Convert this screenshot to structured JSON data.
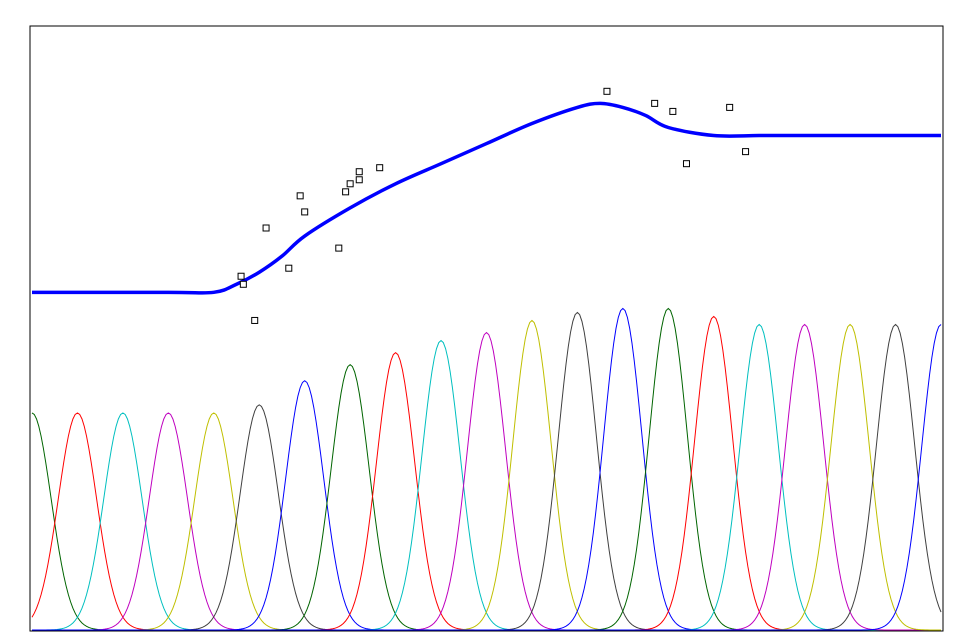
{
  "chart_data": {
    "type": "line",
    "title": "",
    "xlabel": "",
    "ylabel": "",
    "xlim": [
      0,
      20
    ],
    "ylim": [
      0,
      1.5
    ],
    "grid": false,
    "legend": "none",
    "basis_height": [
      0.54,
      0.54,
      0.54,
      0.54,
      0.54,
      0.56,
      0.62,
      0.66,
      0.69,
      0.72,
      0.74,
      0.77,
      0.79,
      0.8,
      0.8,
      0.78,
      0.76,
      0.76,
      0.76,
      0.76,
      0.76
    ],
    "basis_colors": [
      "#006400",
      "#ff0000",
      "#00bfbf",
      "#bf00bf",
      "#bfbf00",
      "#404040",
      "#0000ff"
    ],
    "fit_curve": {
      "color": "#0000ff",
      "x": [
        0,
        3,
        4,
        4.5,
        5,
        5.5,
        6,
        7,
        8,
        9,
        10,
        11,
        12,
        12.5,
        13,
        13.5,
        14,
        15,
        16,
        17,
        18,
        19,
        20
      ],
      "y": [
        0.84,
        0.84,
        0.84,
        0.86,
        0.89,
        0.93,
        0.98,
        1.05,
        1.11,
        1.16,
        1.21,
        1.26,
        1.3,
        1.31,
        1.3,
        1.28,
        1.25,
        1.23,
        1.23,
        1.23,
        1.23,
        1.23,
        1.23
      ]
    },
    "scatter": {
      "x": [
        4.6,
        4.65,
        4.9,
        5.15,
        5.65,
        5.9,
        6.0,
        6.75,
        6.9,
        7.0,
        7.2,
        7.2,
        7.65,
        12.65,
        13.7,
        14.1,
        14.4,
        15.35,
        15.7
      ],
      "y": [
        0.88,
        0.86,
        0.77,
        1.0,
        0.9,
        1.08,
        1.04,
        0.95,
        1.09,
        1.11,
        1.12,
        1.14,
        1.15,
        1.34,
        1.31,
        1.29,
        1.16,
        1.3,
        1.19
      ]
    }
  }
}
